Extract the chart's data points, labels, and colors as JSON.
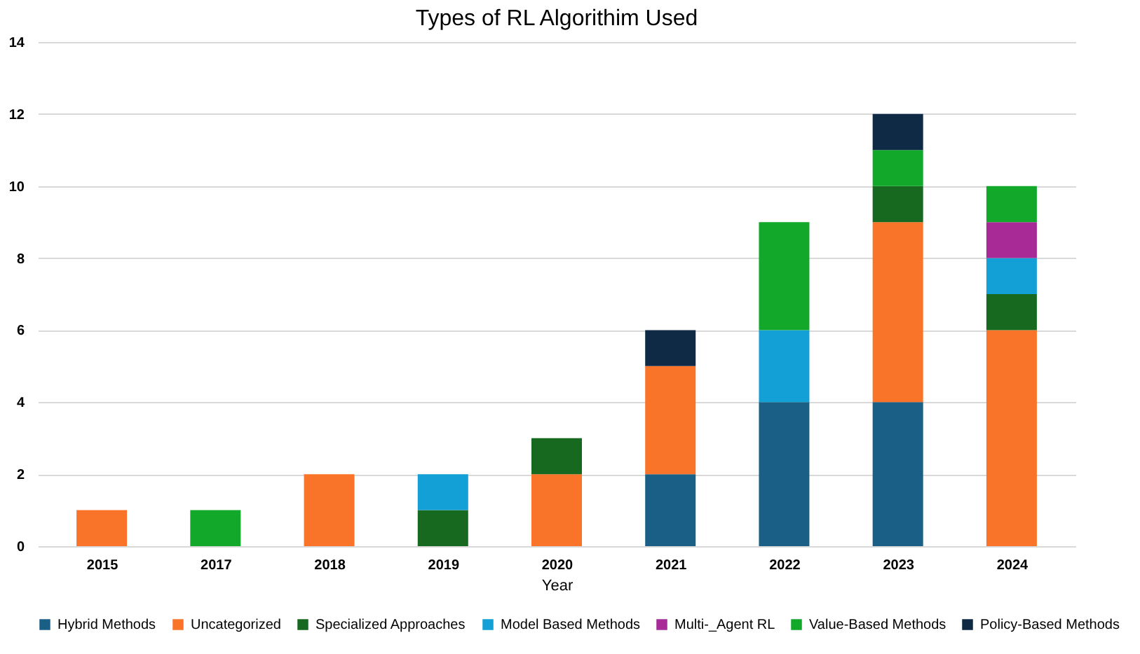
{
  "chart_data": {
    "type": "bar",
    "title": "Types of RL Algorithim Used",
    "xlabel": "Year",
    "categories": [
      "2015",
      "2017",
      "2018",
      "2019",
      "2020",
      "2021",
      "2022",
      "2023",
      "2024"
    ],
    "stacked": true,
    "series": [
      {
        "name": "Hybrid Methods",
        "color": "#1a6086",
        "values": [
          null,
          null,
          null,
          null,
          null,
          2,
          4,
          4,
          null
        ]
      },
      {
        "name": "Uncategorized",
        "color": "#f97328",
        "values": [
          1,
          null,
          2,
          null,
          2,
          3,
          null,
          5,
          6
        ]
      },
      {
        "name": "Specialized Approaches",
        "color": "#16691f",
        "values": [
          null,
          null,
          null,
          1,
          1,
          null,
          null,
          1,
          1
        ]
      },
      {
        "name": "Model Based Methods",
        "color": "#12a0d6",
        "values": [
          null,
          null,
          null,
          1,
          null,
          null,
          2,
          null,
          1
        ]
      },
      {
        "name": "Multi-_Agent RL",
        "color": "#a82a96",
        "values": [
          null,
          null,
          null,
          null,
          null,
          null,
          null,
          null,
          1
        ]
      },
      {
        "name": "Value-Based Methods",
        "color": "#12a82a",
        "values": [
          null,
          1,
          null,
          null,
          null,
          null,
          3,
          1,
          1
        ]
      },
      {
        "name": "Policy-Based Methods",
        "color": "#0e2a44",
        "values": [
          null,
          null,
          null,
          null,
          null,
          1,
          null,
          1,
          null
        ]
      }
    ],
    "ylim": [
      0,
      14
    ],
    "yticks": [
      0,
      2,
      4,
      6,
      8,
      10,
      12,
      14
    ],
    "grid": "y",
    "legend": "bottom"
  }
}
